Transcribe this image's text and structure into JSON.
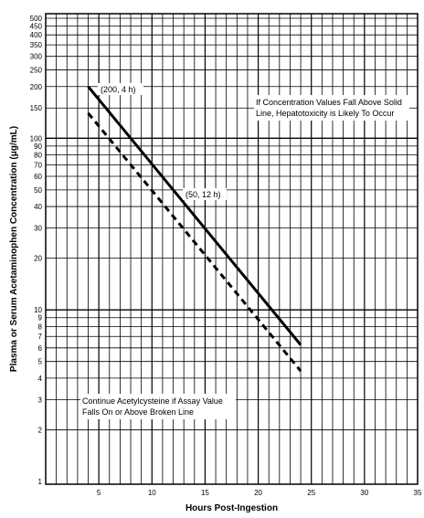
{
  "chart_data": {
    "type": "line",
    "xlabel": "Hours Post-Ingestion",
    "ylabel": "Plasma or Serum Acetaminophen Concentration (μg/mL)",
    "xlim": [
      0,
      35
    ],
    "ylim": [
      1,
      500
    ],
    "y_scale": "log",
    "grid": true,
    "x_ticks": [
      5,
      10,
      15,
      20,
      25,
      30,
      35
    ],
    "y_ticks": [
      1,
      2,
      3,
      4,
      5,
      6,
      7,
      8,
      9,
      10,
      20,
      30,
      40,
      50,
      60,
      70,
      80,
      90,
      100,
      150,
      200,
      250,
      300,
      350,
      400,
      450,
      500
    ],
    "series": [
      {
        "style": "solid",
        "x": [
          4,
          24
        ],
        "y": [
          200,
          6.25
        ]
      },
      {
        "style": "dashed",
        "x": [
          4,
          24
        ],
        "y": [
          140,
          4.4
        ]
      }
    ],
    "annotations": {
      "point_200_4": "(200, 4 h)",
      "point_50_12": "(50, 12 h)",
      "above_solid_line_1": "If Concentration Values Fall Above Solid",
      "above_solid_line_2": "Line, Hepatotoxicity is Likely To Occur",
      "continue_line_1": "Continue Acetylcysteine if Assay Value",
      "continue_line_2": "Falls On or Above Broken Line"
    }
  }
}
